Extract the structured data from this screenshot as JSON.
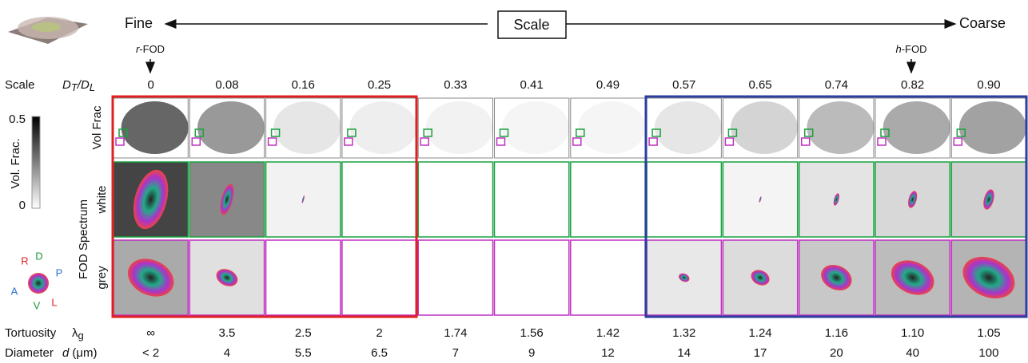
{
  "header": {
    "fine": "Fine",
    "scale": "Scale",
    "coarse": "Coarse",
    "r_fod_italic": "r",
    "r_fod_rest": "-FOD",
    "h_fod_italic": "h",
    "h_fod_rest": "-FOD"
  },
  "rows": {
    "scale_label": "Scale",
    "ratio_num": "D",
    "ratio_num_sub": "T",
    "ratio_sep": "/",
    "ratio_den": "D",
    "ratio_den_sub": "L",
    "vol_frac": "Vol Frac",
    "fod_spectrum": "FOD Spectrum",
    "white": "white",
    "grey": "grey",
    "tortuosity": "Tortuosity",
    "lambda": "λ",
    "lambda_sub": "g",
    "diameter": "Diameter",
    "d": "d",
    "unit": "(μm)"
  },
  "colorbar": {
    "max": "0.5",
    "min": "0",
    "label": "Vol. Frac."
  },
  "orientation": [
    "R",
    "D",
    "P",
    "A",
    "V",
    "L"
  ],
  "columns": [
    {
      "scale": "0",
      "tortuosity": "∞",
      "diameter": "< 2"
    },
    {
      "scale": "0.08",
      "tortuosity": "3.5",
      "diameter": "4"
    },
    {
      "scale": "0.16",
      "tortuosity": "2.5",
      "diameter": "5.5"
    },
    {
      "scale": "0.25",
      "tortuosity": "2",
      "diameter": "6.5"
    },
    {
      "scale": "0.33",
      "tortuosity": "1.74",
      "diameter": "7"
    },
    {
      "scale": "0.41",
      "tortuosity": "1.56",
      "diameter": "9"
    },
    {
      "scale": "0.49",
      "tortuosity": "1.42",
      "diameter": "12"
    },
    {
      "scale": "0.57",
      "tortuosity": "1.32",
      "diameter": "14"
    },
    {
      "scale": "0.65",
      "tortuosity": "1.24",
      "diameter": "17"
    },
    {
      "scale": "0.74",
      "tortuosity": "1.16",
      "diameter": "20"
    },
    {
      "scale": "0.82",
      "tortuosity": "1.10",
      "diameter": "40"
    },
    {
      "scale": "0.90",
      "tortuosity": "1.05",
      "diameter": "100"
    }
  ]
}
